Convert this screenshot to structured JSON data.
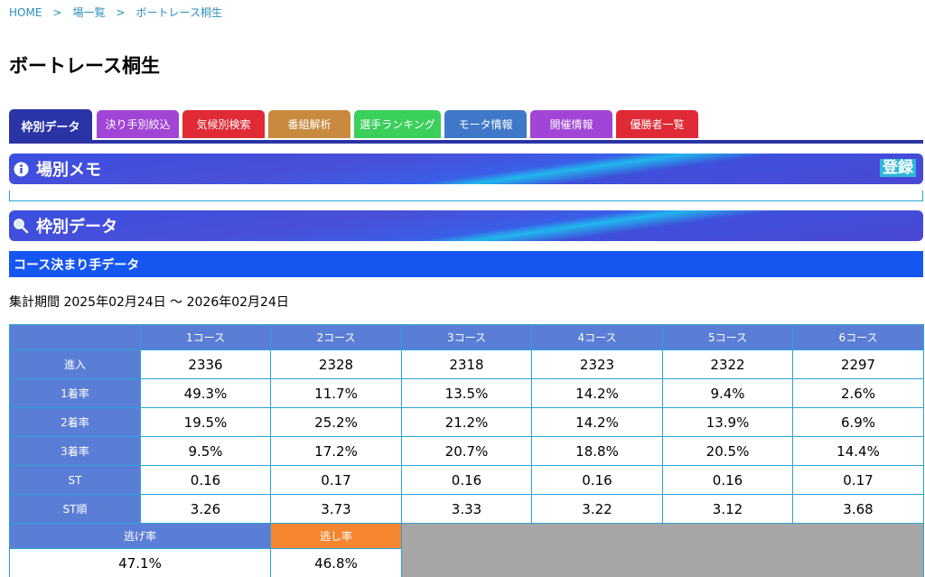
{
  "breadcrumb": {
    "home": "HOME",
    "sep": ">",
    "list": "場一覧",
    "current": "ボートレース桐生"
  },
  "page_title": "ボートレース桐生",
  "tabs": [
    {
      "label": "枠別データ",
      "color": "#2b34a6"
    },
    {
      "label": "決り手別絞込",
      "color": "#a145d6"
    },
    {
      "label": "気候別検索",
      "color": "#e02a35"
    },
    {
      "label": "番組解析",
      "color": "#c98a40"
    },
    {
      "label": "選手ランキング",
      "color": "#3bcf5c"
    },
    {
      "label": "モータ情報",
      "color": "#3f78c8"
    },
    {
      "label": "開催情報",
      "color": "#a145d6"
    },
    {
      "label": "優勝者一覧",
      "color": "#e02a35"
    }
  ],
  "memo": {
    "title": "場別メモ",
    "register_label": "登録",
    "icon": "info-icon"
  },
  "waku": {
    "title": "枠別データ",
    "icon": "magnifier-icon"
  },
  "subhead": "コース決まり手データ",
  "period": "集計期間 2025年02月24日 〜 2026年02月24日",
  "table": {
    "columns": [
      "",
      "1コース",
      "2コース",
      "3コース",
      "4コース",
      "5コース",
      "6コース"
    ],
    "rows": [
      {
        "label": "進入",
        "values": [
          "2336",
          "2328",
          "2318",
          "2323",
          "2322",
          "2297"
        ]
      },
      {
        "label": "1着率",
        "values": [
          "49.3%",
          "11.7%",
          "13.5%",
          "14.2%",
          "9.4%",
          "2.6%"
        ]
      },
      {
        "label": "2着率",
        "values": [
          "19.5%",
          "25.2%",
          "21.2%",
          "14.2%",
          "13.9%",
          "6.9%"
        ]
      },
      {
        "label": "3着率",
        "values": [
          "9.5%",
          "17.2%",
          "20.7%",
          "18.8%",
          "20.5%",
          "14.4%"
        ]
      },
      {
        "label": "ST",
        "values": [
          "0.16",
          "0.17",
          "0.16",
          "0.16",
          "0.16",
          "0.17"
        ]
      },
      {
        "label": "ST順",
        "values": [
          "3.26",
          "3.73",
          "3.33",
          "3.22",
          "3.12",
          "3.68"
        ]
      }
    ],
    "nige": {
      "label": "逃げ率",
      "value": "47.1%"
    },
    "sashi": {
      "label": "逃し率",
      "value": "46.8%"
    }
  }
}
